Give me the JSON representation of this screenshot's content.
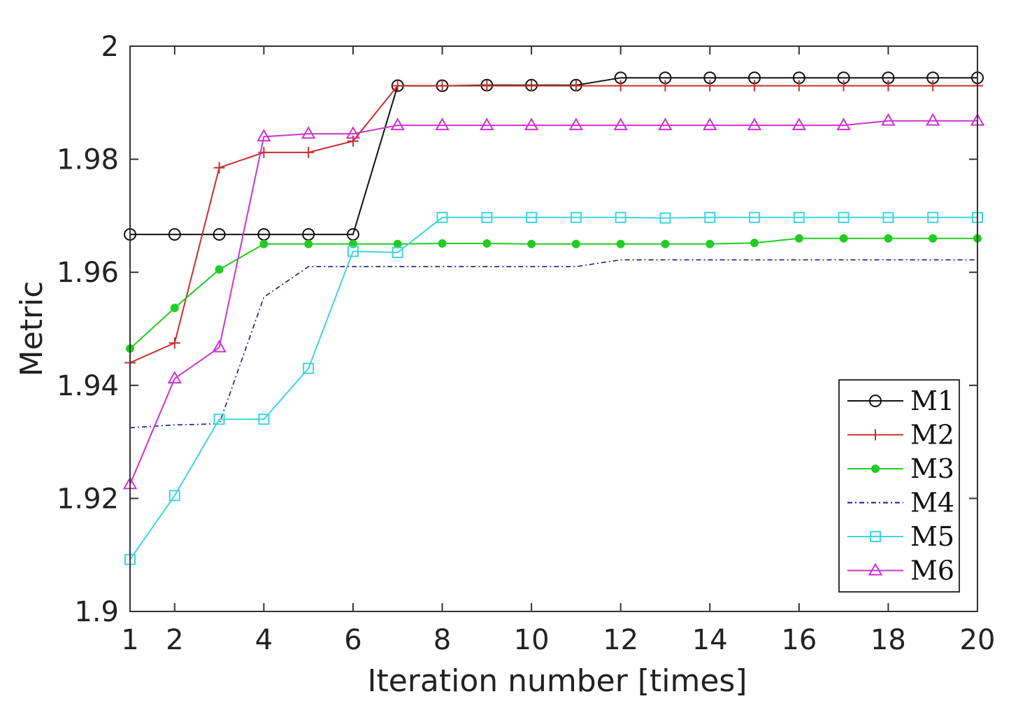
{
  "chart_data": {
    "type": "line",
    "title": "",
    "xlabel": "Iteration number [times]",
    "ylabel": "Metric",
    "xlim": [
      1,
      20
    ],
    "ylim": [
      1.9,
      2.0
    ],
    "grid": false,
    "legend_position": "bottom-right",
    "x_ticks": [
      1,
      2,
      4,
      6,
      8,
      10,
      12,
      14,
      16,
      18,
      20
    ],
    "x_tick_labels": [
      "1",
      "2",
      "4",
      "6",
      "8",
      "10",
      "12",
      "14",
      "16",
      "18",
      "20"
    ],
    "y_ticks": [
      1.9,
      1.92,
      1.94,
      1.96,
      1.98,
      2.0
    ],
    "y_tick_labels": [
      "1.9",
      "1.92",
      "1.94",
      "1.96",
      "1.98",
      "2"
    ],
    "x": [
      1,
      2,
      3,
      4,
      5,
      6,
      7,
      8,
      9,
      10,
      11,
      12,
      13,
      14,
      15,
      16,
      17,
      18,
      19,
      20
    ],
    "series": [
      {
        "name": "M1",
        "color": "#111111",
        "marker": "circle",
        "dash": "solid",
        "values": [
          1.9667,
          1.9667,
          1.9667,
          1.9667,
          1.9667,
          1.9667,
          1.993,
          1.993,
          1.9931,
          1.9931,
          1.9931,
          1.9944,
          1.9944,
          1.9944,
          1.9944,
          1.9944,
          1.9944,
          1.9944,
          1.9944,
          1.9944
        ]
      },
      {
        "name": "M2",
        "color": "#c8302c",
        "marker": "plus",
        "dash": "solid",
        "values": [
          1.944,
          1.9475,
          1.9785,
          1.9812,
          1.9812,
          1.9832,
          1.993,
          1.993,
          1.993,
          1.993,
          1.993,
          1.993,
          1.993,
          1.993,
          1.993,
          1.993,
          1.993,
          1.993,
          1.993,
          1.993
        ]
      },
      {
        "name": "M3",
        "color": "#22cc22",
        "marker": "asterisk",
        "dash": "solid",
        "values": [
          1.9465,
          1.9537,
          1.9605,
          1.965,
          1.965,
          1.965,
          1.965,
          1.9651,
          1.9651,
          1.965,
          1.965,
          1.965,
          1.965,
          1.965,
          1.9652,
          1.966,
          1.966,
          1.966,
          1.966,
          1.966
        ]
      },
      {
        "name": "M4",
        "color": "#1a1a8c",
        "marker": "none",
        "dash": "dashdot",
        "values": [
          1.9325,
          1.933,
          1.9332,
          1.9556,
          1.961,
          1.961,
          1.961,
          1.961,
          1.961,
          1.961,
          1.961,
          1.9622,
          1.9622,
          1.9622,
          1.9622,
          1.9622,
          1.9622,
          1.9622,
          1.9622,
          1.9622
        ]
      },
      {
        "name": "M5",
        "color": "#3fd6dc",
        "marker": "square",
        "dash": "solid",
        "values": [
          1.9092,
          1.9205,
          1.934,
          1.934,
          1.943,
          1.9637,
          1.9635,
          1.9697,
          1.9697,
          1.9697,
          1.9697,
          1.9697,
          1.9696,
          1.9697,
          1.9697,
          1.9697,
          1.9697,
          1.9697,
          1.9697,
          1.9697
        ]
      },
      {
        "name": "M6",
        "color": "#cc33cc",
        "marker": "triangle",
        "dash": "solid",
        "values": [
          1.9225,
          1.9412,
          1.9467,
          1.984,
          1.9845,
          1.9845,
          1.986,
          1.986,
          1.986,
          1.986,
          1.986,
          1.986,
          1.986,
          1.986,
          1.986,
          1.986,
          1.986,
          1.9868,
          1.9868,
          1.9868
        ]
      }
    ]
  }
}
